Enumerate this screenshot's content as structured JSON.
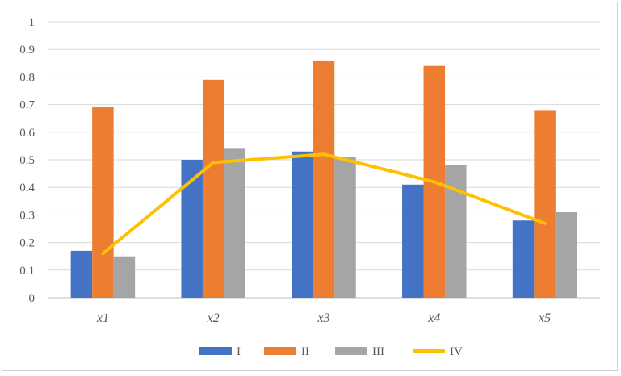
{
  "chart_data": {
    "type": "bar",
    "categories": [
      "x1",
      "x2",
      "x3",
      "x4",
      "x5"
    ],
    "series": [
      {
        "name": "I",
        "kind": "bar",
        "color": "#4472C4",
        "values": [
          0.17,
          0.5,
          0.53,
          0.41,
          0.28
        ]
      },
      {
        "name": "II",
        "kind": "bar",
        "color": "#ED7D31",
        "values": [
          0.69,
          0.79,
          0.86,
          0.84,
          0.68
        ]
      },
      {
        "name": "III",
        "kind": "bar",
        "color": "#A5A5A5",
        "values": [
          0.15,
          0.54,
          0.51,
          0.48,
          0.31
        ]
      },
      {
        "name": "IV",
        "kind": "line",
        "color": "#FFC000",
        "values": [
          0.16,
          0.49,
          0.52,
          0.42,
          0.27
        ]
      }
    ],
    "ylim": [
      0,
      1
    ],
    "yticks": [
      "0",
      "0.1",
      "0.2",
      "0.3",
      "0.4",
      "0.5",
      "0.6",
      "0.7",
      "0.8",
      "0.9",
      "1"
    ],
    "grid": true,
    "legend_position": "bottom"
  }
}
